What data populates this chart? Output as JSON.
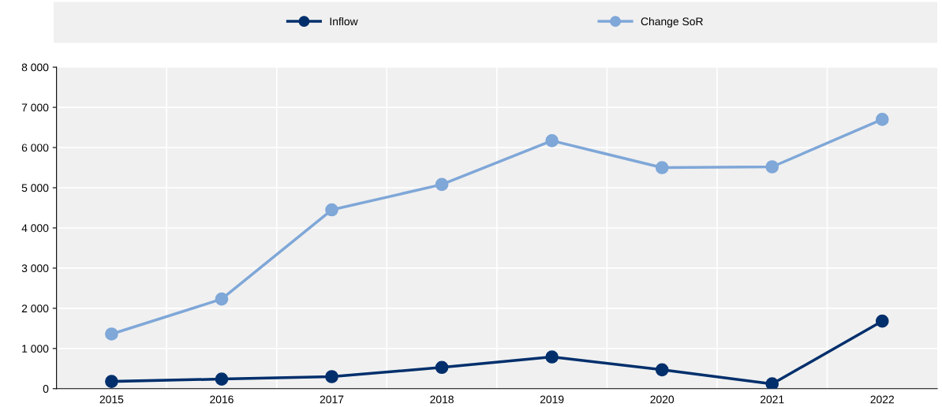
{
  "chart_data": {
    "type": "line",
    "categories": [
      "2015",
      "2016",
      "2017",
      "2018",
      "2019",
      "2020",
      "2021",
      "2022"
    ],
    "series": [
      {
        "name": "Inflow",
        "color": "#002f6c",
        "values": [
          180,
          240,
          300,
          530,
          790,
          470,
          120,
          1680
        ]
      },
      {
        "name": "Change SoR",
        "color": "#7fa7d8",
        "values": [
          1360,
          2230,
          4450,
          5080,
          6170,
          5500,
          5520,
          6700
        ]
      }
    ],
    "ylim": [
      0,
      8000
    ],
    "yticks": [
      0,
      {
        "value": 1000,
        "label": "1 000"
      },
      {
        "value": 2000,
        "label": "2 000"
      },
      {
        "value": 3000,
        "label": "3 000"
      },
      {
        "value": 4000,
        "label": "4 000"
      },
      {
        "value": 5000,
        "label": "5 000"
      },
      {
        "value": 6000,
        "label": "6 000"
      },
      {
        "value": 7000,
        "label": "7 000"
      },
      {
        "value": 8000,
        "label": "8 000"
      }
    ],
    "grid": true,
    "legend": "top",
    "marker": "circle",
    "line_style": "solid"
  }
}
